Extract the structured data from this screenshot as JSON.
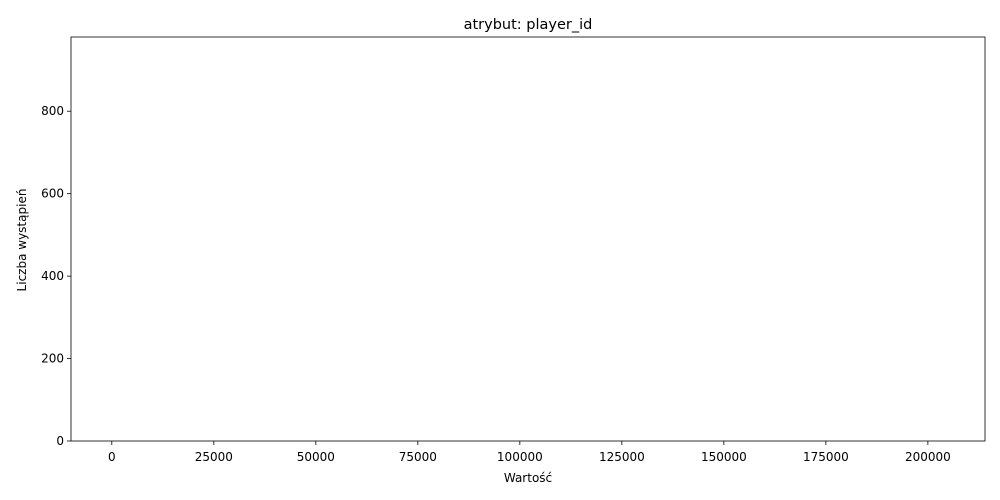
{
  "chart_data": {
    "type": "bar",
    "title": "atrybut: player_id",
    "xlabel": "Wartość",
    "ylabel": "Liczba wystąpień",
    "xlim": [
      -10000,
      214000
    ],
    "ylim": [
      0,
      980
    ],
    "x_ticks": [
      0,
      25000,
      50000,
      75000,
      100000,
      125000,
      150000,
      175000,
      200000
    ],
    "y_ticks": [
      0,
      200,
      400,
      600,
      800
    ],
    "grid": false,
    "legend": "none",
    "bar_color": "#1f77b4",
    "series": []
  }
}
